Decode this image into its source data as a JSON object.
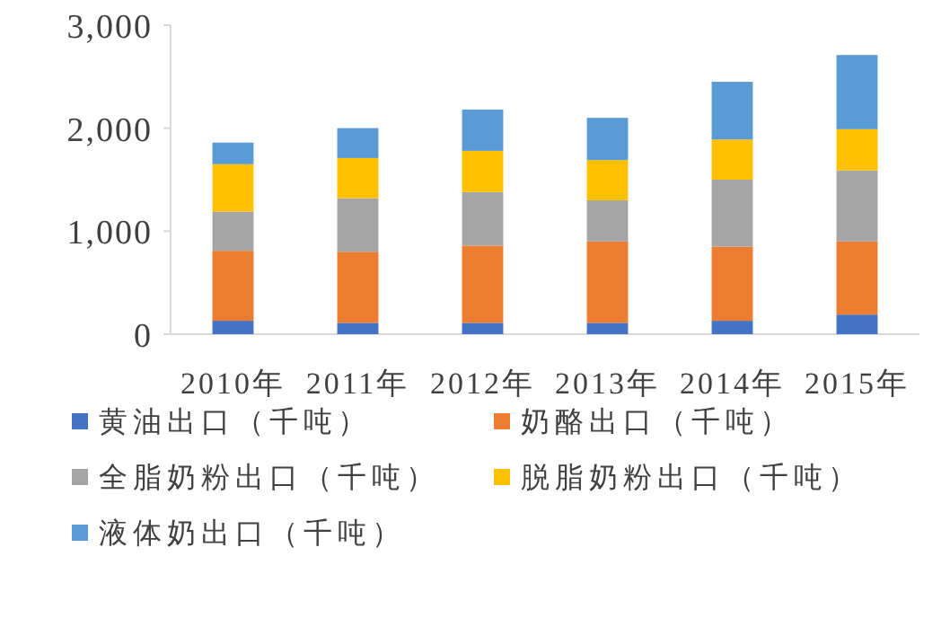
{
  "chart_data": {
    "type": "bar",
    "stacked": true,
    "categories": [
      "2010年",
      "2011年",
      "2012年",
      "2013年",
      "2014年",
      "2015年"
    ],
    "ylim": [
      0,
      3000
    ],
    "yticks": [
      0,
      {
        "value": 1000,
        "label": "1,000"
      },
      {
        "value": 2000,
        "label": "2,000"
      },
      {
        "value": 3000,
        "label": "3,000"
      }
    ],
    "legend": "bottom",
    "series": [
      {
        "name": "黄油出口（千吨）",
        "color": "#4472c4",
        "values": [
          130,
          110,
          110,
          110,
          130,
          190
        ]
      },
      {
        "name": "奶酪出口（千吨）",
        "color": "#ed7d31",
        "values": [
          680,
          690,
          750,
          790,
          720,
          710
        ]
      },
      {
        "name": "全脂奶粉出口（千吨）",
        "color": "#a5a5a5",
        "values": [
          380,
          520,
          520,
          400,
          650,
          690
        ]
      },
      {
        "name": "脱脂奶粉出口（千吨）",
        "color": "#ffc000",
        "values": [
          460,
          390,
          400,
          390,
          390,
          400
        ]
      },
      {
        "name": "液体奶出口（千吨）",
        "color": "#5b9bd5",
        "values": [
          210,
          290,
          400,
          410,
          560,
          720
        ]
      }
    ]
  }
}
